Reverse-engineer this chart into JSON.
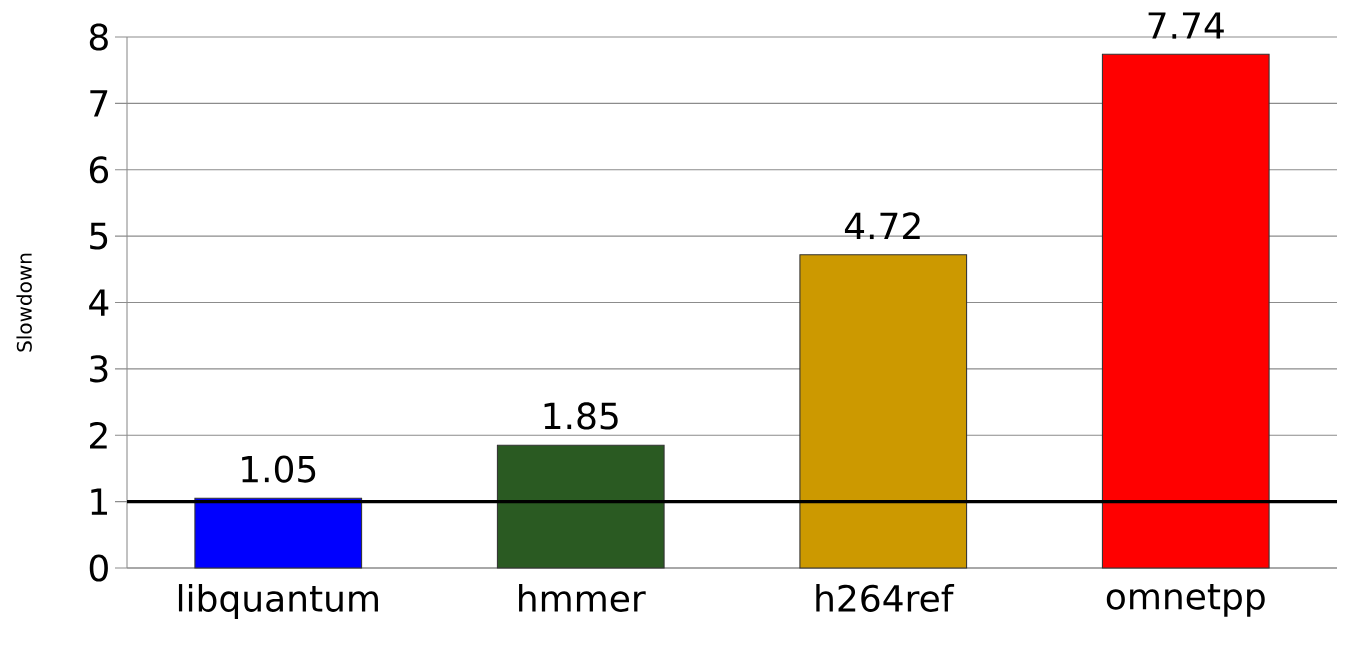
{
  "chart_data": {
    "type": "bar",
    "ylabel": "Slowdown",
    "categories": [
      "libquantum",
      "hmmer",
      "h264ref",
      "omnetpp"
    ],
    "values": [
      1.05,
      1.85,
      4.72,
      7.74
    ],
    "colors": [
      "#0000ff",
      "#2a5a22",
      "#cc9900",
      "#ff0000"
    ],
    "ylim": [
      0,
      8
    ],
    "yticks": [
      0,
      1,
      2,
      3,
      4,
      5,
      6,
      7,
      8
    ],
    "grid": "y",
    "data_labels": true,
    "ref_lines": [
      {
        "axis": "y",
        "value": 1,
        "color": "#000000"
      }
    ]
  }
}
